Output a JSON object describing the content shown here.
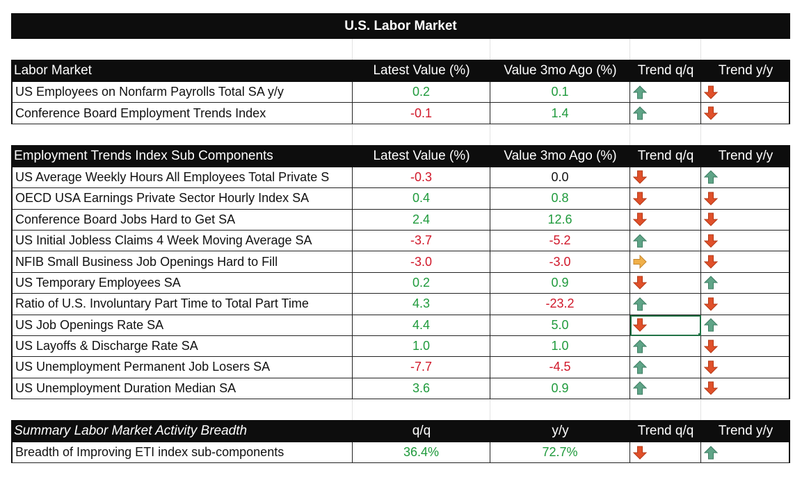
{
  "title": "U.S. Labor Market",
  "colors": {
    "positive": "#1f9a3c",
    "negative": "#d0182a",
    "arrow_up": "#5fa487",
    "arrow_down": "#e0502a",
    "arrow_side": "#f0b04a"
  },
  "section1": {
    "headers": [
      "Labor Market",
      "Latest Value (%)",
      "Value 3mo Ago (%)",
      "Trend q/q",
      "Trend y/y"
    ],
    "rows": [
      {
        "name": "US Employees on Nonfarm Payrolls Total SA y/y",
        "latest": "0.2",
        "latest_sign": "pos",
        "ago": "0.1",
        "ago_sign": "pos",
        "trend_qq": "up-arrow-icon",
        "trend_yy": "down-arrow-icon"
      },
      {
        "name": "Conference Board Employment Trends Index",
        "latest": "-0.1",
        "latest_sign": "neg",
        "ago": "1.4",
        "ago_sign": "pos",
        "trend_qq": "up-arrow-icon",
        "trend_yy": "down-arrow-icon"
      }
    ]
  },
  "section2": {
    "headers": [
      "Employment Trends Index Sub Components",
      "Latest Value (%)",
      "Value 3mo Ago (%)",
      "Trend q/q",
      "Trend y/y"
    ],
    "rows": [
      {
        "name": "US Average Weekly Hours All Employees Total Private S",
        "latest": "-0.3",
        "latest_sign": "neg",
        "ago": "0.0",
        "ago_sign": "neu",
        "trend_qq": "down-arrow-icon",
        "trend_yy": "up-arrow-icon"
      },
      {
        "name": "OECD USA Earnings Private Sector Hourly Index SA",
        "latest": "0.4",
        "latest_sign": "pos",
        "ago": "0.8",
        "ago_sign": "pos",
        "trend_qq": "down-arrow-icon",
        "trend_yy": "down-arrow-icon"
      },
      {
        "name": "Conference Board Jobs Hard to Get SA",
        "latest": "2.4",
        "latest_sign": "pos",
        "ago": "12.6",
        "ago_sign": "pos",
        "trend_qq": "down-arrow-icon",
        "trend_yy": "down-arrow-icon"
      },
      {
        "name": "US Initial Jobless Claims 4 Week Moving Average SA",
        "latest": "-3.7",
        "latest_sign": "neg",
        "ago": "-5.2",
        "ago_sign": "neg",
        "trend_qq": "up-arrow-icon",
        "trend_yy": "down-arrow-icon"
      },
      {
        "name": "NFIB Small Business Job Openings Hard to Fill",
        "latest": "-3.0",
        "latest_sign": "neg",
        "ago": "-3.0",
        "ago_sign": "neg",
        "trend_qq": "right-arrow-icon",
        "trend_yy": "down-arrow-icon"
      },
      {
        "name": "US Temporary Employees SA",
        "latest": "0.2",
        "latest_sign": "pos",
        "ago": "0.9",
        "ago_sign": "pos",
        "trend_qq": "down-arrow-icon",
        "trend_yy": "up-arrow-icon"
      },
      {
        "name": "Ratio of U.S. Involuntary Part Time to Total Part Time",
        "latest": "4.3",
        "latest_sign": "pos",
        "ago": "-23.2",
        "ago_sign": "neg",
        "trend_qq": "up-arrow-icon",
        "trend_yy": "down-arrow-icon"
      },
      {
        "name": "US Job Openings Rate SA",
        "latest": "4.4",
        "latest_sign": "pos",
        "ago": "5.0",
        "ago_sign": "pos",
        "trend_qq": "down-arrow-icon",
        "trend_yy": "up-arrow-icon"
      },
      {
        "name": "US Layoffs & Discharge Rate SA",
        "latest": "1.0",
        "latest_sign": "pos",
        "ago": "1.0",
        "ago_sign": "pos",
        "trend_qq": "up-arrow-icon",
        "trend_yy": "down-arrow-icon"
      },
      {
        "name": "US Unemployment Permanent Job Losers SA",
        "latest": "-7.7",
        "latest_sign": "neg",
        "ago": "-4.5",
        "ago_sign": "neg",
        "trend_qq": "up-arrow-icon",
        "trend_yy": "down-arrow-icon"
      },
      {
        "name": "US Unemployment Duration Median SA",
        "latest": "3.6",
        "latest_sign": "pos",
        "ago": "0.9",
        "ago_sign": "pos",
        "trend_qq": "up-arrow-icon",
        "trend_yy": "down-arrow-icon"
      }
    ]
  },
  "section3": {
    "headers": [
      "Summary Labor Market Activity Breadth",
      "q/q",
      "y/y",
      "Trend q/q",
      "Trend y/y"
    ],
    "rows": [
      {
        "name": "Breadth of Improving ETI index sub-components",
        "latest": "36.4%",
        "latest_sign": "pos",
        "ago": "72.7%",
        "ago_sign": "pos",
        "trend_qq": "down-arrow-icon",
        "trend_yy": "up-arrow-icon"
      }
    ]
  }
}
